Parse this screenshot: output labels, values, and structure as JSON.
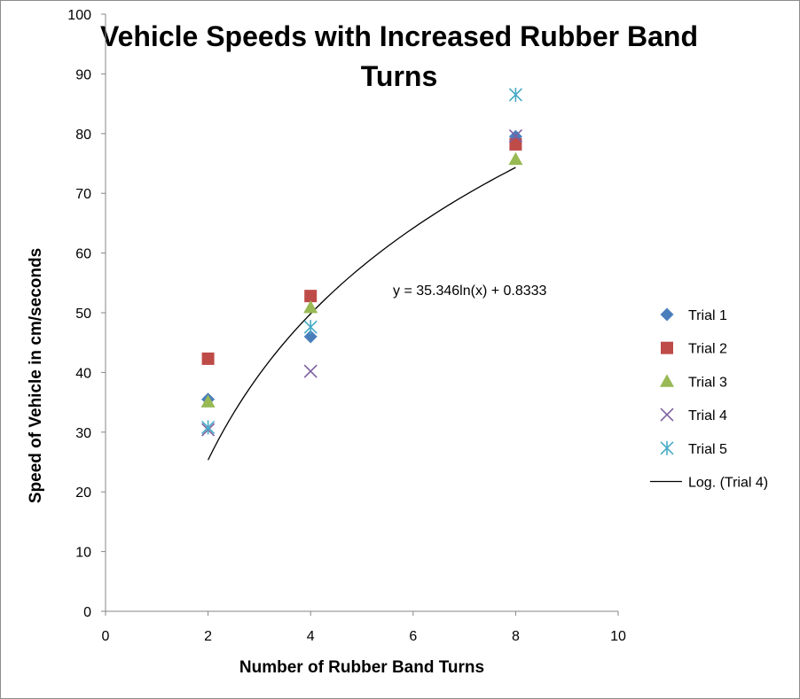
{
  "chart_data": {
    "type": "scatter",
    "title_lines": [
      "Vehicle Speeds with Increased Rubber Band",
      "Turns"
    ],
    "xlabel": "Number of Rubber Band Turns",
    "ylabel": "Speed of Vehicle in cm/seconds",
    "xlim": [
      0,
      10
    ],
    "ylim": [
      0,
      100
    ],
    "xticks": [
      0,
      2,
      4,
      6,
      8,
      10
    ],
    "yticks": [
      0,
      10,
      20,
      30,
      40,
      50,
      60,
      70,
      80,
      90,
      100
    ],
    "grid": false,
    "legend_position": "right",
    "series": [
      {
        "name": "Trial 1",
        "marker": "diamond",
        "color": "#4a7ebb",
        "x": [
          2,
          4,
          8
        ],
        "y": [
          35.5,
          46,
          79.5
        ]
      },
      {
        "name": "Trial 2",
        "marker": "square",
        "color": "#be4b48",
        "x": [
          2,
          4,
          8
        ],
        "y": [
          42.3,
          52.8,
          78.2
        ]
      },
      {
        "name": "Trial 3",
        "marker": "triangle",
        "color": "#98b954",
        "x": [
          2,
          4,
          8
        ],
        "y": [
          35.1,
          50.9,
          75.7
        ]
      },
      {
        "name": "Trial 4",
        "marker": "x",
        "color": "#7d60a0",
        "x": [
          2,
          4,
          8
        ],
        "y": [
          30.4,
          40.2,
          79.6
        ]
      },
      {
        "name": "Trial 5",
        "marker": "star",
        "color": "#46aac5",
        "x": [
          2,
          4,
          8
        ],
        "y": [
          30.8,
          47.6,
          86.5
        ]
      }
    ],
    "trendline": {
      "name": "Log. (Trial 4)",
      "type": "logarithmic",
      "a": 35.346,
      "b": 0.8333,
      "x_range": [
        2,
        8
      ],
      "equation": "y = 35.346ln(x) + 0.8333",
      "color": "#000000"
    }
  }
}
